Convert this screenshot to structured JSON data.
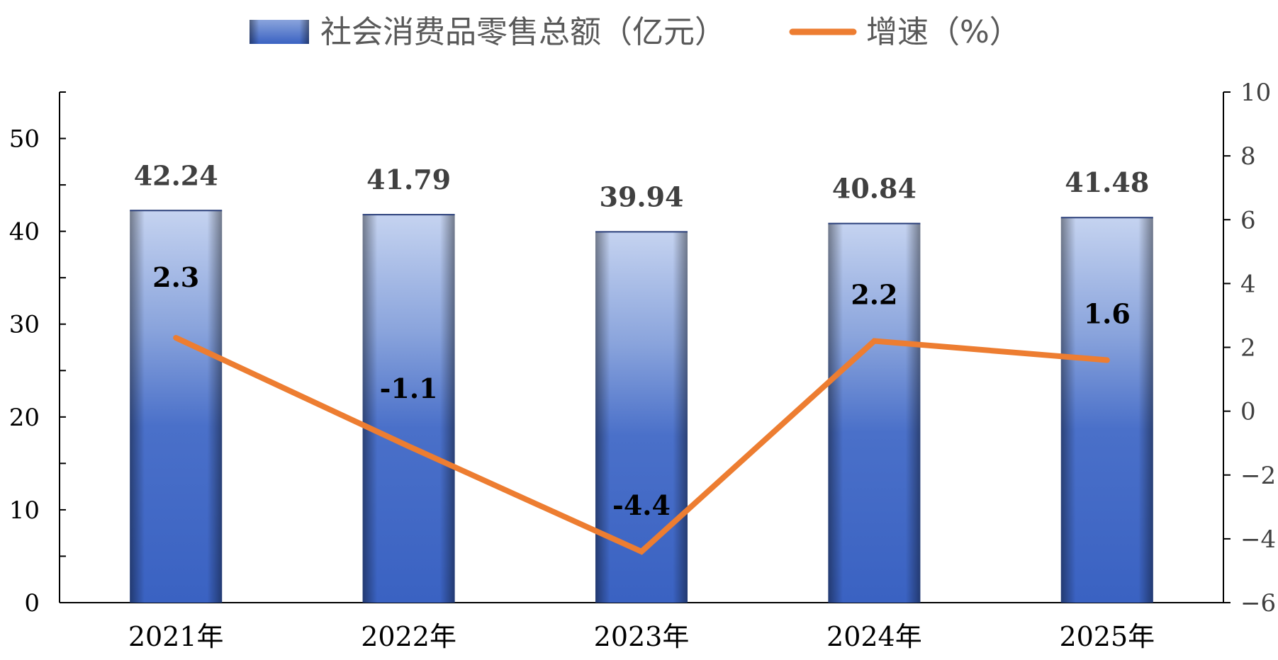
{
  "chart_data": {
    "type": "bar",
    "categories": [
      "2021年",
      "2022年",
      "2023年",
      "2024年",
      "2025年"
    ],
    "series": [
      {
        "name": "社会消费品零售总额（亿元）",
        "type": "bar",
        "axis": "left",
        "values": [
          42.24,
          41.79,
          39.94,
          40.84,
          41.48
        ],
        "labels": [
          "42.24",
          "41.79",
          "39.94",
          "40.84",
          "41.48"
        ],
        "color": "#3a64c4"
      },
      {
        "name": "增速（%）",
        "type": "line",
        "axis": "right",
        "values": [
          2.3,
          -1.1,
          -4.4,
          2.2,
          1.6
        ],
        "labels": [
          "2.3",
          "-1.1",
          "-4.4",
          "2.2",
          "1.6"
        ],
        "color": "#ed7d31"
      }
    ],
    "y_left": {
      "ticks": [
        "0",
        "10",
        "20",
        "30",
        "40",
        "50"
      ],
      "ylim": [
        0,
        55
      ]
    },
    "y_right": {
      "ticks": [
        "−6",
        "−4",
        "−2",
        "0",
        "2",
        "4",
        "6",
        "8",
        "10"
      ],
      "ylim": [
        -6,
        10
      ]
    },
    "grid": false,
    "legend_position": "top-center"
  }
}
